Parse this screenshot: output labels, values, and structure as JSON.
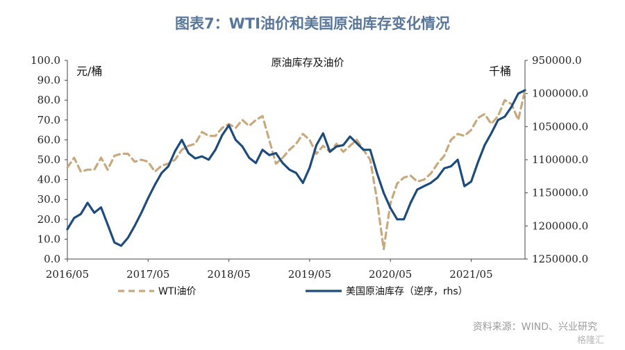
{
  "title": "图表7：WTI油价和美国原油库存变化情况",
  "source": "资料来源：WIND、兴业研究",
  "watermark": "格隆汇",
  "colors": {
    "title": "#58769a",
    "wti": "#c8a97e",
    "inventory": "#1d4b7b"
  },
  "chart_data": {
    "type": "line",
    "title": "原油库存及油价",
    "ylabel_left": "元/桶",
    "ylabel_right": "千桶",
    "ylim_left": [
      0,
      100
    ],
    "ylim_right": [
      950000,
      1250000
    ],
    "right_axis_inverted": true,
    "yticks_left": [
      "0.0",
      "10.0",
      "20.0",
      "30.0",
      "40.0",
      "50.0",
      "60.0",
      "70.0",
      "80.0",
      "90.0",
      "100.0"
    ],
    "yticks_right": [
      "950000.0",
      "1000000.0",
      "1050000.0",
      "1100000.0",
      "1150000.0",
      "1200000.0",
      "1250000.0"
    ],
    "x_ticks": [
      "2016/05",
      "2017/05",
      "2018/05",
      "2019/05",
      "2020/05",
      "2021/05"
    ],
    "x_range": [
      "2016/05",
      "2022/01"
    ],
    "legend": [
      "WTI油价",
      "美国原油库存（逆序，rhs）"
    ],
    "legend_position": "bottom",
    "grid": false,
    "series": [
      {
        "name": "WTI油价",
        "axis": "left",
        "style": "dashed",
        "x": [
          "2016/05",
          "2016/06",
          "2016/07",
          "2016/08",
          "2016/09",
          "2016/10",
          "2016/11",
          "2016/12",
          "2017/01",
          "2017/02",
          "2017/03",
          "2017/04",
          "2017/05",
          "2017/06",
          "2017/07",
          "2017/08",
          "2017/09",
          "2017/10",
          "2017/11",
          "2017/12",
          "2018/01",
          "2018/02",
          "2018/03",
          "2018/04",
          "2018/05",
          "2018/06",
          "2018/07",
          "2018/08",
          "2018/09",
          "2018/10",
          "2018/11",
          "2018/12",
          "2019/01",
          "2019/02",
          "2019/03",
          "2019/04",
          "2019/05",
          "2019/06",
          "2019/07",
          "2019/08",
          "2019/09",
          "2019/10",
          "2019/11",
          "2019/12",
          "2020/01",
          "2020/02",
          "2020/03",
          "2020/04",
          "2020/05",
          "2020/06",
          "2020/07",
          "2020/08",
          "2020/09",
          "2020/10",
          "2020/11",
          "2020/12",
          "2021/01",
          "2021/02",
          "2021/03",
          "2021/04",
          "2021/05",
          "2021/06",
          "2021/07",
          "2021/08",
          "2021/09",
          "2021/10",
          "2021/11",
          "2021/12",
          "2022/01"
        ],
        "values": [
          46,
          51,
          44,
          45,
          45,
          51,
          45,
          52,
          53,
          53,
          49,
          50,
          49,
          44,
          47,
          48,
          50,
          55,
          57,
          58,
          64,
          62,
          62,
          66,
          68,
          66,
          70,
          67,
          70,
          72,
          60,
          48,
          51,
          55,
          58,
          63,
          60,
          53,
          57,
          54,
          58,
          54,
          57,
          60,
          55,
          50,
          30,
          5,
          28,
          38,
          41,
          42,
          39,
          40,
          43,
          48,
          52,
          60,
          63,
          62,
          65,
          71,
          73,
          68,
          72,
          80,
          78,
          70,
          85
        ]
      },
      {
        "name": "美国原油库存（逆序，rhs）",
        "axis": "right",
        "style": "solid",
        "x": [
          "2016/05",
          "2016/06",
          "2016/07",
          "2016/08",
          "2016/09",
          "2016/10",
          "2016/11",
          "2016/12",
          "2017/01",
          "2017/02",
          "2017/03",
          "2017/04",
          "2017/05",
          "2017/06",
          "2017/07",
          "2017/08",
          "2017/09",
          "2017/10",
          "2017/11",
          "2017/12",
          "2018/01",
          "2018/02",
          "2018/03",
          "2018/04",
          "2018/05",
          "2018/06",
          "2018/07",
          "2018/08",
          "2018/09",
          "2018/10",
          "2018/11",
          "2018/12",
          "2019/01",
          "2019/02",
          "2019/03",
          "2019/04",
          "2019/05",
          "2019/06",
          "2019/07",
          "2019/08",
          "2019/09",
          "2019/10",
          "2019/11",
          "2019/12",
          "2020/01",
          "2020/02",
          "2020/03",
          "2020/04",
          "2020/05",
          "2020/06",
          "2020/07",
          "2020/08",
          "2020/09",
          "2020/10",
          "2020/11",
          "2020/12",
          "2021/01",
          "2021/02",
          "2021/03",
          "2021/04",
          "2021/05",
          "2021/06",
          "2021/07",
          "2021/08",
          "2021/09",
          "2021/10",
          "2021/11",
          "2021/12",
          "2022/01"
        ],
        "values": [
          1205000,
          1188000,
          1182000,
          1165000,
          1180000,
          1172000,
          1198000,
          1225000,
          1230000,
          1218000,
          1200000,
          1180000,
          1158000,
          1138000,
          1120000,
          1110000,
          1087000,
          1070000,
          1090000,
          1098000,
          1095000,
          1100000,
          1085000,
          1063000,
          1048000,
          1070000,
          1080000,
          1097000,
          1105000,
          1085000,
          1093000,
          1090000,
          1105000,
          1115000,
          1120000,
          1135000,
          1112000,
          1078000,
          1060000,
          1088000,
          1080000,
          1078000,
          1065000,
          1075000,
          1085000,
          1085000,
          1120000,
          1150000,
          1173000,
          1190000,
          1190000,
          1165000,
          1145000,
          1140000,
          1135000,
          1127000,
          1113000,
          1110000,
          1100000,
          1140000,
          1133000,
          1104000,
          1078000,
          1060000,
          1040000,
          1035000,
          1020000,
          1000000,
          995000
        ]
      }
    ]
  }
}
